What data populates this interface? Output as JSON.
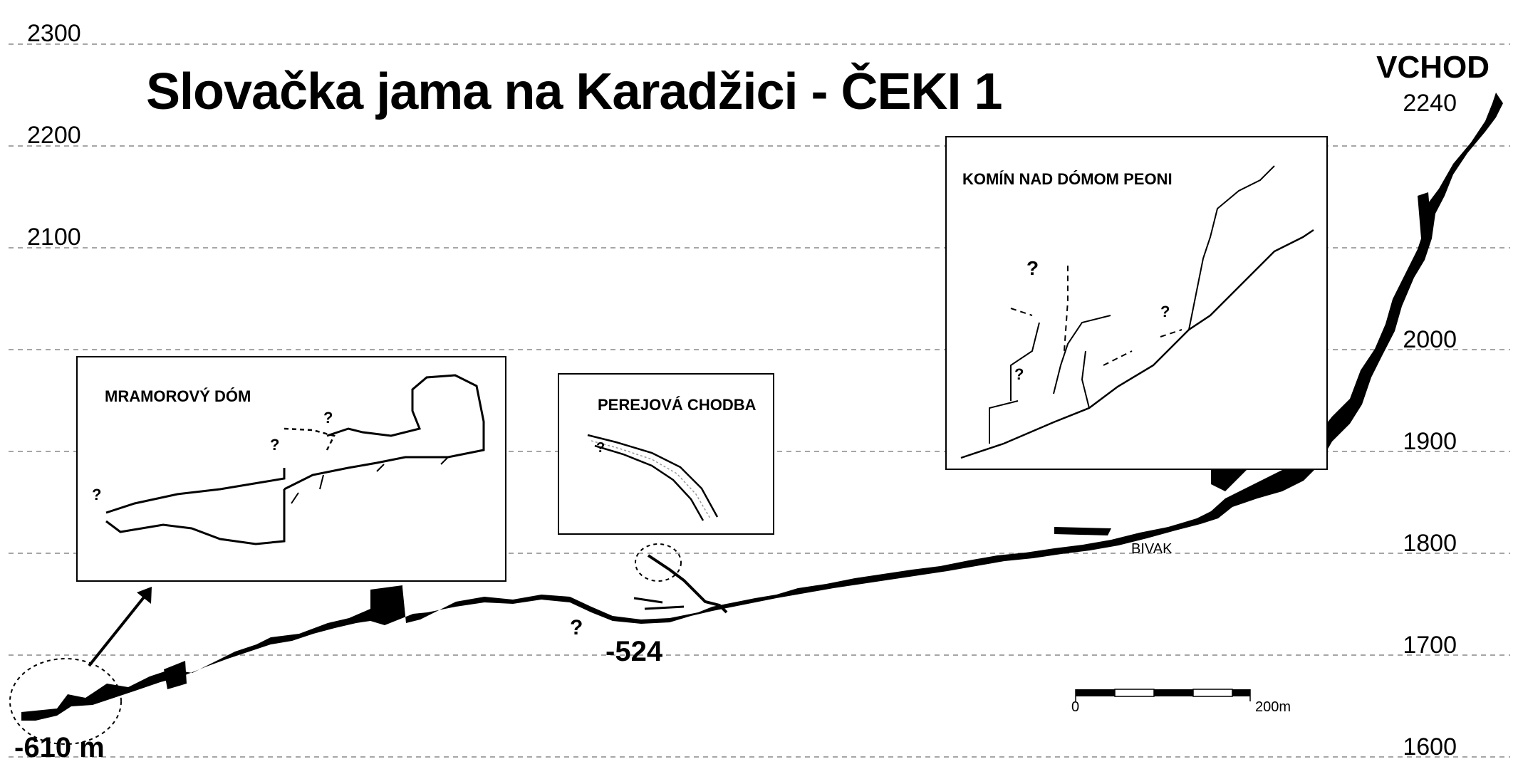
{
  "title": "Slovačka jama na Karadžici - ČEKI 1",
  "elevation_labels": {
    "left": [
      "2300",
      "2200",
      "2100"
    ],
    "right": [
      "2240",
      "2000",
      "1900",
      "1800",
      "1700",
      "1600"
    ]
  },
  "entrance_label": "VCHOD",
  "depth_labels": {
    "bottom": "-610 m",
    "mid": "-524"
  },
  "bivak_label": "BIVAK",
  "question_mark": "?",
  "insets": [
    {
      "title": "MRAMOROVÝ DÓM"
    },
    {
      "title": "PEREJOVÁ CHODBA"
    },
    {
      "title": "KOMÍN NAD DÓMOM PEONI"
    }
  ],
  "scale_bar": {
    "start": "0",
    "end": "200m"
  }
}
